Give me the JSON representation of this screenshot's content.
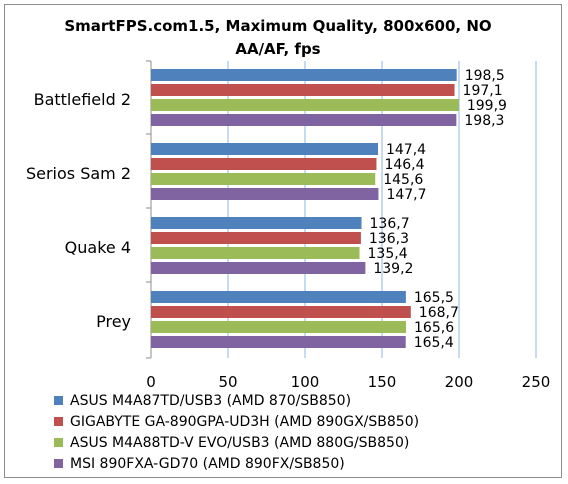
{
  "chart_data": {
    "type": "bar",
    "orientation": "horizontal",
    "title": "SmartFPS.com1.5, Maximum Quality, 800x600, NO AA/AF, fps",
    "title_lines": [
      "SmartFPS.com1.5, Maximum Quality, 800x600, NO",
      "AA/AF, fps"
    ],
    "categories": [
      "Battlefield 2",
      "Serios Sam 2",
      "Quake 4",
      "Prey"
    ],
    "series": [
      {
        "name": "ASUS M4A87TD/USB3 (AMD 870/SB850)",
        "color": "#4f81bd",
        "values": [
          198.5,
          147.4,
          136.7,
          165.5
        ],
        "labels": [
          "198,5",
          "147,4",
          "136,7",
          "165,5"
        ]
      },
      {
        "name": "GIGABYTE GA-890GPA-UD3H (AMD 890GX/SB850)",
        "color": "#c0504d",
        "values": [
          197.1,
          146.4,
          136.3,
          168.7
        ],
        "labels": [
          "197,1",
          "146,4",
          "136,3",
          "168,7"
        ]
      },
      {
        "name": "ASUS M4A88TD-V EVO/USB3 (AMD 880G/SB850)",
        "color": "#9bbb59",
        "values": [
          199.9,
          145.6,
          135.4,
          165.6
        ],
        "labels": [
          "199,9",
          "145,6",
          "135,4",
          "165,6"
        ]
      },
      {
        "name": "MSI 890FXA-GD70 (AMD 890FX/SB850)",
        "color": "#8064a2",
        "values": [
          198.3,
          147.7,
          139.2,
          165.4
        ],
        "labels": [
          "198,3",
          "147,7",
          "139,2",
          "165,4"
        ]
      }
    ],
    "xlim": [
      0,
      250
    ],
    "xticks": [
      "0",
      "50",
      "100",
      "150",
      "200",
      "250"
    ],
    "grid": "vertical",
    "legend_position": "bottom",
    "gridline_color": "#8eb4e3"
  }
}
